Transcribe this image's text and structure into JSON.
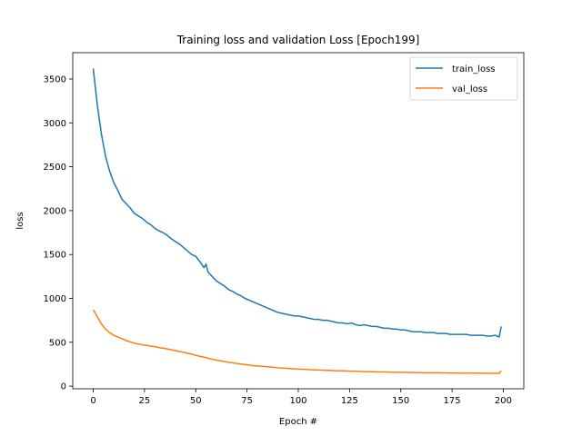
{
  "chart_data": {
    "type": "line",
    "title": "Training loss and validation Loss [Epoch199]",
    "xlabel": "Epoch #",
    "ylabel": "loss",
    "xlim": [
      -10,
      210
    ],
    "ylim": [
      -30,
      3800
    ],
    "xticks": [
      0,
      25,
      50,
      75,
      100,
      125,
      150,
      175,
      200
    ],
    "yticks": [
      0,
      500,
      1000,
      1500,
      2000,
      2500,
      3000,
      3500
    ],
    "grid": false,
    "legend_position": "top-right",
    "series": [
      {
        "name": "train_loss",
        "color": "#1f77b4",
        "x": [
          0,
          2,
          4,
          6,
          8,
          10,
          12,
          14,
          16,
          18,
          20,
          22,
          24,
          26,
          28,
          30,
          32,
          34,
          36,
          38,
          40,
          42,
          44,
          46,
          47,
          48,
          50,
          52,
          54,
          55,
          56,
          58,
          60,
          62,
          64,
          66,
          68,
          70,
          72,
          74,
          76,
          78,
          80,
          82,
          84,
          86,
          88,
          90,
          92,
          94,
          96,
          98,
          100,
          102,
          104,
          106,
          108,
          110,
          112,
          114,
          116,
          118,
          120,
          122,
          124,
          126,
          128,
          130,
          132,
          134,
          136,
          138,
          140,
          142,
          144,
          146,
          148,
          150,
          152,
          154,
          156,
          158,
          160,
          162,
          164,
          166,
          168,
          170,
          172,
          174,
          176,
          178,
          180,
          182,
          184,
          186,
          188,
          190,
          192,
          194,
          196,
          198,
          199
        ],
        "y": [
          3620,
          3200,
          2870,
          2620,
          2450,
          2320,
          2230,
          2130,
          2080,
          2030,
          1970,
          1940,
          1910,
          1870,
          1840,
          1800,
          1770,
          1750,
          1720,
          1680,
          1650,
          1620,
          1580,
          1540,
          1520,
          1500,
          1480,
          1420,
          1350,
          1390,
          1300,
          1250,
          1200,
          1170,
          1140,
          1100,
          1080,
          1050,
          1030,
          1000,
          980,
          960,
          940,
          920,
          900,
          880,
          860,
          840,
          830,
          820,
          810,
          800,
          800,
          790,
          780,
          770,
          760,
          760,
          750,
          750,
          740,
          730,
          720,
          720,
          710,
          720,
          700,
          690,
          700,
          690,
          680,
          680,
          670,
          660,
          660,
          650,
          650,
          640,
          640,
          630,
          620,
          620,
          620,
          610,
          610,
          610,
          600,
          600,
          600,
          590,
          590,
          590,
          590,
          590,
          580,
          580,
          580,
          580,
          570,
          570,
          580,
          560,
          680
        ]
      },
      {
        "name": "val_loss",
        "color": "#ff7f0e",
        "x": [
          0,
          2,
          4,
          6,
          8,
          10,
          12,
          14,
          16,
          18,
          20,
          22,
          24,
          26,
          28,
          30,
          32,
          34,
          36,
          38,
          40,
          42,
          44,
          46,
          48,
          50,
          52,
          54,
          56,
          58,
          60,
          62,
          64,
          66,
          68,
          70,
          72,
          74,
          76,
          78,
          80,
          82,
          84,
          86,
          88,
          90,
          92,
          94,
          96,
          98,
          100,
          102,
          104,
          106,
          108,
          110,
          112,
          114,
          116,
          118,
          120,
          122,
          124,
          126,
          128,
          130,
          132,
          134,
          136,
          138,
          140,
          142,
          144,
          146,
          148,
          150,
          152,
          154,
          156,
          158,
          160,
          162,
          164,
          166,
          168,
          170,
          172,
          174,
          176,
          178,
          180,
          182,
          184,
          186,
          188,
          190,
          192,
          194,
          196,
          198,
          199
        ],
        "y": [
          870,
          790,
          710,
          650,
          610,
          580,
          560,
          540,
          520,
          505,
          490,
          480,
          470,
          465,
          455,
          450,
          440,
          432,
          424,
          415,
          405,
          395,
          385,
          375,
          365,
          350,
          340,
          330,
          318,
          306,
          296,
          288,
          280,
          272,
          265,
          258,
          252,
          246,
          240,
          234,
          230,
          226,
          222,
          218,
          214,
          210,
          206,
          203,
          200,
          197,
          194,
          192,
          190,
          188,
          186,
          184,
          182,
          180,
          178,
          176,
          175,
          174,
          172,
          170,
          169,
          168,
          166,
          165,
          164,
          163,
          162,
          161,
          160,
          159,
          158,
          158,
          157,
          156,
          155,
          155,
          154,
          153,
          153,
          152,
          152,
          151,
          151,
          150,
          150,
          150,
          149,
          149,
          148,
          148,
          148,
          147,
          147,
          146,
          146,
          146,
          175
        ]
      }
    ]
  }
}
